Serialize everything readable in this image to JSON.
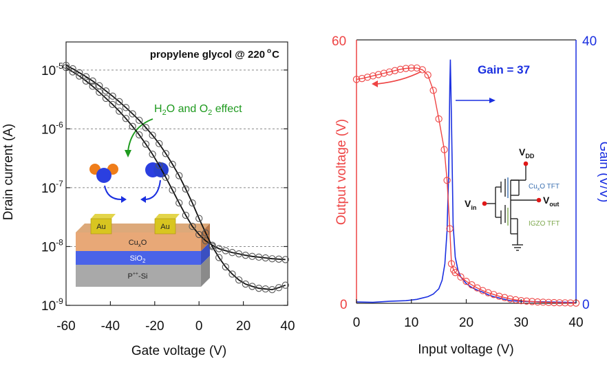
{
  "chart_data": [
    {
      "type": "scatter",
      "title": "propylene glycol @ 220 °C",
      "title_pre": "propylene glycol @ 220",
      "title_deg": "o",
      "title_unit": "C",
      "xlabel": "Gate voltage (V)",
      "ylabel": "Drain current (A)",
      "xlim": [
        -60,
        40
      ],
      "ylim": [
        1e-09,
        3e-05
      ],
      "yscale": "log",
      "grid": "horizontal dashed",
      "xticks": [
        -60,
        -40,
        -20,
        0,
        20,
        40
      ],
      "xtick_labels": [
        "-60",
        "-40",
        "-20",
        "0",
        "20",
        "40"
      ],
      "ytick_exponents": [
        "-5",
        "-6",
        "-7",
        "-8",
        "-9"
      ],
      "ytick_base": "10",
      "annotation": {
        "t1": "H",
        "s1": "2",
        "t2": "O and O",
        "s2": "2",
        "t3": " effect",
        "color": "#1e9a1e"
      },
      "series": [
        {
          "values": [
            [
              -60,
              1.1e-05
            ],
            [
              -57,
              9.3e-06
            ],
            [
              -54,
              7.9e-06
            ],
            [
              -51,
              6.5e-06
            ],
            [
              -48,
              5.3e-06
            ],
            [
              -45,
              4.2e-06
            ],
            [
              -42,
              3.3e-06
            ],
            [
              -39,
              2.6e-06
            ],
            [
              -36,
              2e-06
            ],
            [
              -33,
              1.5e-06
            ],
            [
              -30,
              1.1e-06
            ],
            [
              -27,
              7.9e-07
            ],
            [
              -24,
              5.5e-07
            ],
            [
              -21,
              3.7e-07
            ],
            [
              -18,
              2.4e-07
            ],
            [
              -15,
              1.5e-07
            ],
            [
              -12,
              9.1e-08
            ],
            [
              -9,
              5.5e-08
            ],
            [
              -6,
              3.4e-08
            ],
            [
              -3,
              2.2e-08
            ],
            [
              0,
              1.6e-08
            ],
            [
              3,
              1.25e-08
            ],
            [
              6,
              1.05e-08
            ],
            [
              9,
              9.2e-09
            ],
            [
              12,
              8.5e-09
            ],
            [
              15,
              7.9e-09
            ],
            [
              18,
              7.5e-09
            ],
            [
              21,
              7.1e-09
            ],
            [
              24,
              6.8e-09
            ],
            [
              27,
              6.6e-09
            ],
            [
              30,
              6.4e-09
            ],
            [
              33,
              6.2e-09
            ],
            [
              36,
              6.1e-09
            ],
            [
              39,
              6e-09
            ]
          ]
        },
        {
          "values": [
            [
              -60,
              1.2e-05
            ],
            [
              -57,
              1.05e-05
            ],
            [
              -54,
              9e-06
            ],
            [
              -51,
              7.7e-06
            ],
            [
              -48,
              6.5e-06
            ],
            [
              -45,
              5.4e-06
            ],
            [
              -42,
              4.4e-06
            ],
            [
              -39,
              3.6e-06
            ],
            [
              -36,
              2.9e-06
            ],
            [
              -33,
              2.3e-06
            ],
            [
              -30,
              1.8e-06
            ],
            [
              -27,
              1.4e-06
            ],
            [
              -24,
              1.05e-06
            ],
            [
              -21,
              7.8e-07
            ],
            [
              -18,
              5.6e-07
            ],
            [
              -15,
              3.8e-07
            ],
            [
              -12,
              2.5e-07
            ],
            [
              -9,
              1.6e-07
            ],
            [
              -6,
              9.5e-08
            ],
            [
              -3,
              5.5e-08
            ],
            [
              0,
              3e-08
            ],
            [
              3,
              1.7e-08
            ],
            [
              6,
              1e-08
            ],
            [
              9,
              6.5e-09
            ],
            [
              12,
              4.5e-09
            ],
            [
              15,
              3.4e-09
            ],
            [
              18,
              2.7e-09
            ],
            [
              21,
              2.3e-09
            ],
            [
              24,
              2.1e-09
            ],
            [
              27,
              1.95e-09
            ],
            [
              30,
              1.9e-09
            ],
            [
              33,
              1.85e-09
            ],
            [
              36,
              2e-09
            ],
            [
              39,
              2.2e-09
            ]
          ]
        }
      ],
      "inset_device": {
        "electrode_left": "Au",
        "electrode_right": "Au",
        "layer1": {
          "base": "Cu",
          "sub": "x",
          "rest": "O"
        },
        "layer2": {
          "base": "SiO",
          "sub": "2",
          "rest": ""
        },
        "layer3": {
          "base": "P",
          "sup": "++",
          "rest": "-Si"
        }
      }
    },
    {
      "type": "line",
      "title": "",
      "xlabel": "Input voltage (V)",
      "ylabel_left": "Output voltage (V)",
      "ylabel_right": "Gain (V/V)",
      "xlim": [
        0,
        40
      ],
      "ylim_left": [
        0,
        60
      ],
      "ylim_right": [
        0,
        40
      ],
      "xticks": [
        0,
        10,
        20,
        30,
        40
      ],
      "xtick_labels": [
        "0",
        "10",
        "20",
        "30",
        "40"
      ],
      "yleft_tick_labels": {
        "top": "60",
        "bottom": "0"
      },
      "yright_tick_labels": {
        "top": "40",
        "bottom": "0"
      },
      "colors": {
        "output": "#ee4444",
        "gain": "#1a2fe0"
      },
      "annotation": "Gain = 37",
      "output_voltage": [
        [
          0,
          51
        ],
        [
          1,
          51.2
        ],
        [
          2,
          51.5
        ],
        [
          3,
          51.8
        ],
        [
          4,
          52.1
        ],
        [
          5,
          52.4
        ],
        [
          6,
          52.7
        ],
        [
          7,
          53.0
        ],
        [
          8,
          53.3
        ],
        [
          9,
          53.5
        ],
        [
          10,
          53.6
        ],
        [
          11,
          53.6
        ],
        [
          12,
          53.2
        ],
        [
          13,
          52.0
        ],
        [
          14,
          48.5
        ],
        [
          15,
          42.0
        ],
        [
          16,
          35.0
        ],
        [
          16.5,
          28.0
        ],
        [
          17,
          17.0
        ],
        [
          17.3,
          9.0
        ],
        [
          17.7,
          7.6
        ],
        [
          18,
          7.0
        ],
        [
          19,
          6.0
        ],
        [
          20,
          5.0
        ],
        [
          21,
          4.2
        ],
        [
          22,
          3.5
        ],
        [
          23,
          2.9
        ],
        [
          24,
          2.4
        ],
        [
          25,
          2.0
        ],
        [
          26,
          1.6
        ],
        [
          27,
          1.3
        ],
        [
          28,
          1.0
        ],
        [
          29,
          0.8
        ],
        [
          30,
          0.6
        ],
        [
          31,
          0.5
        ],
        [
          32,
          0.4
        ],
        [
          33,
          0.3
        ],
        [
          34,
          0.25
        ],
        [
          35,
          0.2
        ],
        [
          36,
          0.15
        ],
        [
          37,
          0.12
        ],
        [
          38,
          0.1
        ],
        [
          39,
          0.08
        ],
        [
          40,
          0.05
        ]
      ],
      "gain": [
        [
          0,
          0.2
        ],
        [
          3,
          0.15
        ],
        [
          6,
          0.3
        ],
        [
          9,
          0.4
        ],
        [
          11,
          0.6
        ],
        [
          12,
          0.8
        ],
        [
          13,
          1.0
        ],
        [
          14,
          1.4
        ],
        [
          15,
          2.2
        ],
        [
          15.6,
          3.5
        ],
        [
          16.1,
          6
        ],
        [
          16.5,
          11
        ],
        [
          16.8,
          20
        ],
        [
          17.0,
          33
        ],
        [
          17.1,
          37
        ],
        [
          17.3,
          28
        ],
        [
          17.6,
          12
        ],
        [
          18,
          7
        ],
        [
          18.5,
          5
        ],
        [
          19,
          4
        ],
        [
          20,
          3
        ],
        [
          21,
          2.4
        ],
        [
          22,
          2
        ],
        [
          23,
          1.7
        ],
        [
          24,
          1.3
        ],
        [
          25,
          1.0
        ],
        [
          26,
          0.8
        ],
        [
          27,
          0.6
        ],
        [
          28,
          0.4
        ],
        [
          30,
          0.3
        ],
        [
          32,
          0.25
        ],
        [
          35,
          0.2
        ],
        [
          38,
          0.15
        ],
        [
          40,
          0.1
        ]
      ],
      "circuit": {
        "vdd": {
          "base": "V",
          "sub": "DD"
        },
        "vin": {
          "base": "V",
          "sub": "in"
        },
        "vout": {
          "base": "V",
          "sub": "out"
        },
        "top_tft": {
          "base": "Cu",
          "sub": "x",
          "rest": "O TFT",
          "color": "#3a6fb0"
        },
        "bottom_tft": {
          "label": "IGZO TFT",
          "color": "#7ea84e"
        }
      }
    }
  ]
}
